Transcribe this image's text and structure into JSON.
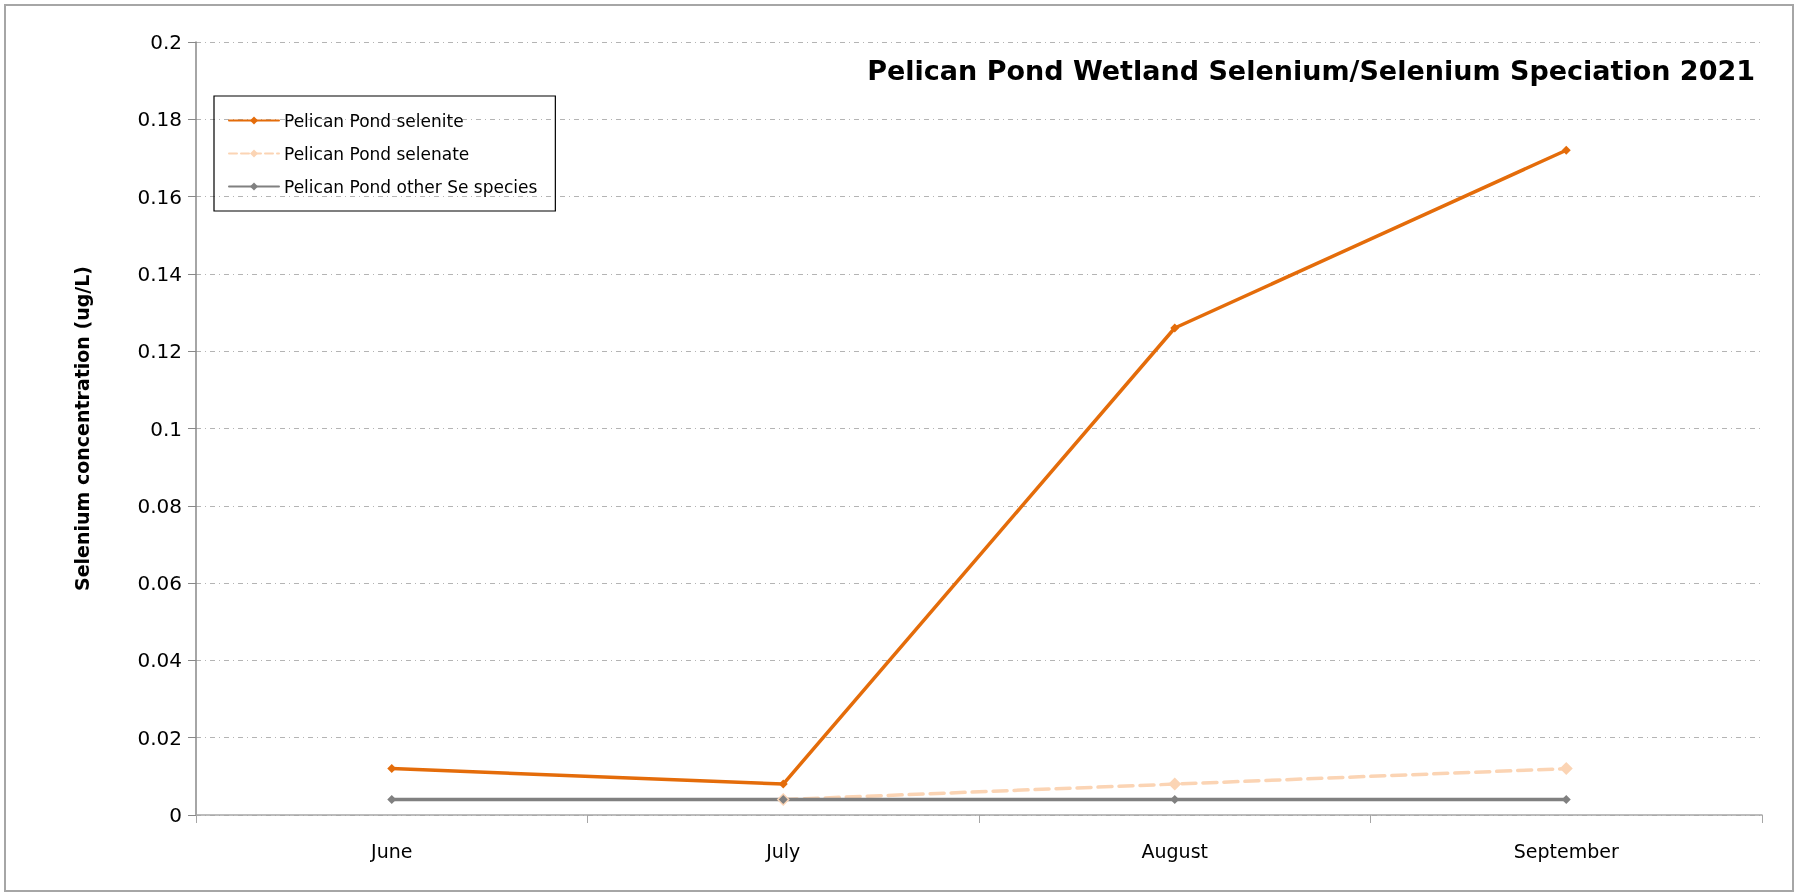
{
  "chart_data": {
    "type": "line",
    "title": "Pelican Pond Wetland Selenium/Selenium Speciation 2021",
    "ylabel": "Selenium concentration (ug/L)",
    "categories": [
      "June",
      "July",
      "August",
      "September"
    ],
    "series": [
      {
        "name": "Pelican Pond selenite",
        "color": "#e46c0a",
        "values": [
          0.012,
          0.008,
          0.126,
          0.172
        ],
        "line_style": "solid"
      },
      {
        "name": "Pelican Pond selenate",
        "color": "#fbd4b4",
        "values": [
          null,
          0.004,
          0.008,
          0.012
        ],
        "line_style": "dashed"
      },
      {
        "name": "Pelican Pond other Se species",
        "color": "#808080",
        "values": [
          0.004,
          0.004,
          0.004,
          0.004
        ],
        "line_style": "solid"
      }
    ],
    "ylim": [
      0,
      0.2
    ],
    "yticks": [
      0,
      0.02,
      0.04,
      0.06,
      0.08,
      0.1,
      0.12,
      0.14,
      0.16,
      0.18,
      0.2
    ],
    "grid": "y",
    "legend": "top left",
    "marker": "diamond"
  }
}
